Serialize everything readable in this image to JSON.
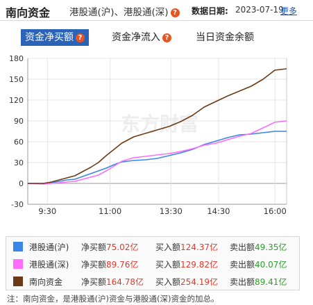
{
  "header": {
    "title": "南向资金",
    "subtitle": "港股通(沪)、港股通(深)",
    "date_label": "数据日期:",
    "date": "2023-07-19",
    "more_label": "更多"
  },
  "tabs": [
    {
      "label": "资金净买额",
      "active": true
    },
    {
      "label": "资金净流入",
      "active": false
    },
    {
      "label": "当日资金余额",
      "active": false
    }
  ],
  "watermark": "东方财富",
  "chart_data": {
    "type": "line",
    "ylim": [
      -30,
      180
    ],
    "yticks": [
      -30,
      0,
      30,
      60,
      90,
      120,
      150,
      180
    ],
    "xticks": [
      "9:30",
      "11:00",
      "13:30",
      "14:30",
      "16:00"
    ],
    "series": [
      {
        "name": "港股通(沪)",
        "color": "#3a86e6",
        "points": [
          [
            0,
            0
          ],
          [
            20,
            0
          ],
          [
            30,
            1
          ],
          [
            40,
            3
          ],
          [
            50,
            5
          ],
          [
            60,
            6
          ],
          [
            70,
            10
          ],
          [
            80,
            14
          ],
          [
            90,
            18
          ],
          [
            100,
            22
          ],
          [
            110,
            27
          ],
          [
            120,
            31
          ],
          [
            135,
            33
          ],
          [
            150,
            34
          ],
          [
            165,
            36
          ],
          [
            180,
            40
          ],
          [
            195,
            44
          ],
          [
            210,
            49
          ],
          [
            225,
            56
          ],
          [
            240,
            61
          ],
          [
            255,
            66
          ],
          [
            270,
            70
          ],
          [
            285,
            71
          ],
          [
            300,
            73
          ],
          [
            315,
            75
          ],
          [
            330,
            75
          ]
        ]
      },
      {
        "name": "港股通(深)",
        "color": "#ff6cff",
        "points": [
          [
            0,
            0
          ],
          [
            20,
            -1
          ],
          [
            30,
            0
          ],
          [
            40,
            1
          ],
          [
            50,
            2
          ],
          [
            60,
            3
          ],
          [
            70,
            6
          ],
          [
            80,
            9
          ],
          [
            90,
            12
          ],
          [
            100,
            18
          ],
          [
            110,
            25
          ],
          [
            120,
            32
          ],
          [
            135,
            37
          ],
          [
            150,
            39
          ],
          [
            165,
            41
          ],
          [
            180,
            43
          ],
          [
            195,
            46
          ],
          [
            210,
            50
          ],
          [
            225,
            55
          ],
          [
            240,
            58
          ],
          [
            255,
            63
          ],
          [
            270,
            68
          ],
          [
            285,
            72
          ],
          [
            300,
            80
          ],
          [
            315,
            88
          ],
          [
            330,
            90
          ]
        ]
      },
      {
        "name": "南向资金",
        "color": "#6b3a14",
        "points": [
          [
            0,
            0
          ],
          [
            20,
            0
          ],
          [
            30,
            2
          ],
          [
            40,
            5
          ],
          [
            50,
            8
          ],
          [
            60,
            11
          ],
          [
            70,
            17
          ],
          [
            80,
            23
          ],
          [
            90,
            30
          ],
          [
            100,
            40
          ],
          [
            110,
            49
          ],
          [
            120,
            58
          ],
          [
            135,
            67
          ],
          [
            150,
            72
          ],
          [
            165,
            77
          ],
          [
            180,
            82
          ],
          [
            195,
            89
          ],
          [
            210,
            98
          ],
          [
            225,
            110
          ],
          [
            240,
            118
          ],
          [
            255,
            126
          ],
          [
            270,
            133
          ],
          [
            285,
            140
          ],
          [
            300,
            150
          ],
          [
            315,
            163
          ],
          [
            330,
            165
          ]
        ]
      }
    ]
  },
  "legend": [
    {
      "name": "港股通(沪)",
      "color": "#3a86e6",
      "net_label": "净买额",
      "net_value": "75.02亿",
      "buy_label": "买入额",
      "buy_value": "124.37亿",
      "sell_label": "卖出额",
      "sell_value": "49.35亿"
    },
    {
      "name": "港股通(深)",
      "color": "#ff6cff",
      "net_label": "净买额",
      "net_value": "89.76亿",
      "buy_label": "买入额",
      "buy_value": "129.82亿",
      "sell_label": "卖出额",
      "sell_value": "40.07亿"
    },
    {
      "name": "南向资金",
      "color": "#6b3a14",
      "net_label": "净买额",
      "net_value": "164.78亿",
      "buy_label": "买入额",
      "buy_value": "254.19亿",
      "sell_label": "卖出额",
      "sell_value": "89.41亿"
    }
  ],
  "note": "注：南向资金，是港股通(沪)资金与港股通(深)资金的加总。"
}
